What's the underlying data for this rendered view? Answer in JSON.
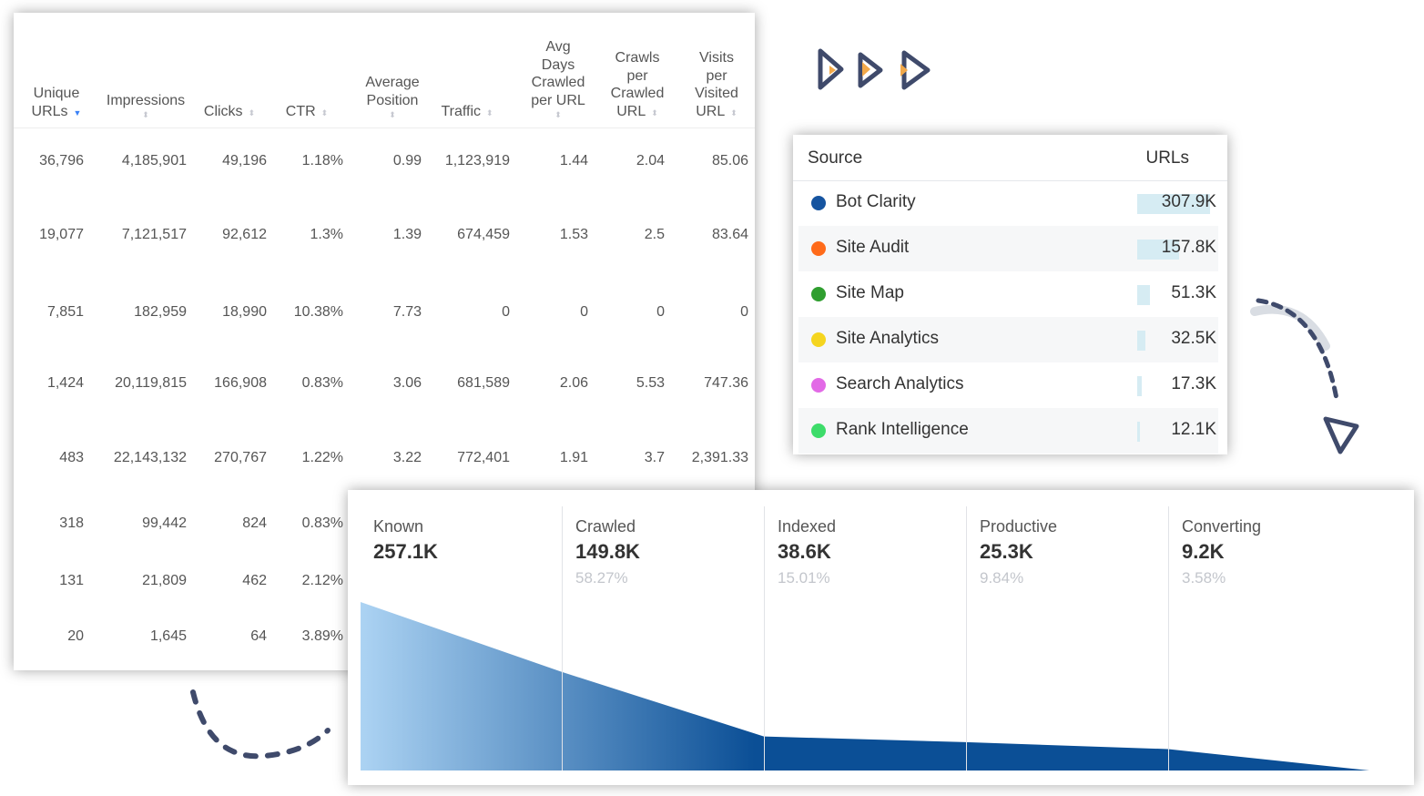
{
  "metrics_table": {
    "columns": [
      {
        "label": "Unique\nURLs",
        "sort": "desc"
      },
      {
        "label": "Impressions",
        "sort": "none"
      },
      {
        "label": "Clicks",
        "sort": "none"
      },
      {
        "label": "CTR",
        "sort": "none"
      },
      {
        "label": "Average\nPosition",
        "sort": "none"
      },
      {
        "label": "Traffic",
        "sort": "none"
      },
      {
        "label": "Avg\nDays\nCrawled\nper URL",
        "sort": "none"
      },
      {
        "label": "Crawls\nper\nCrawled\nURL",
        "sort": "none"
      },
      {
        "label": "Visits\nper\nVisited\nURL",
        "sort": "none"
      }
    ],
    "rows": [
      [
        "36,796",
        "4,185,901",
        "49,196",
        "1.18%",
        "0.99",
        "1,123,919",
        "1.44",
        "2.04",
        "85.06"
      ],
      [
        "19,077",
        "7,121,517",
        "92,612",
        "1.3%",
        "1.39",
        "674,459",
        "1.53",
        "2.5",
        "83.64"
      ],
      [
        "7,851",
        "182,959",
        "18,990",
        "10.38%",
        "7.73",
        "0",
        "0",
        "0",
        "0"
      ],
      [
        "1,424",
        "20,119,815",
        "166,908",
        "0.83%",
        "3.06",
        "681,589",
        "2.06",
        "5.53",
        "747.36"
      ],
      [
        "483",
        "22,143,132",
        "270,767",
        "1.22%",
        "3.22",
        "772,401",
        "1.91",
        "3.7",
        "2,391.33"
      ],
      [
        "318",
        "99,442",
        "824",
        "0.83%"
      ],
      [
        "131",
        "21,809",
        "462",
        "2.12%"
      ],
      [
        "20",
        "1,645",
        "64",
        "3.89%"
      ]
    ]
  },
  "source_table": {
    "headers": [
      "Source",
      "URLs"
    ],
    "rows": [
      {
        "name": "Bot Clarity",
        "value": "307.9K",
        "color": "#1554a0",
        "share": 1.0
      },
      {
        "name": "Site Audit",
        "value": "157.8K",
        "color": "#ff6b1a",
        "share": 0.58
      },
      {
        "name": "Site Map",
        "value": "51.3K",
        "color": "#2f9e2f",
        "share": 0.18
      },
      {
        "name": "Site Analytics",
        "value": "32.5K",
        "color": "#f5d51f",
        "share": 0.11
      },
      {
        "name": "Search Analytics",
        "value": "17.3K",
        "color": "#e26ae6",
        "share": 0.06
      },
      {
        "name": "Rank Intelligence",
        "value": "12.1K",
        "color": "#3ddc6a",
        "share": 0.04
      }
    ]
  },
  "funnel": {
    "stages": [
      {
        "label": "Known",
        "value": "257.1K",
        "percent": ""
      },
      {
        "label": "Crawled",
        "value": "149.8K",
        "percent": "58.27%"
      },
      {
        "label": "Indexed",
        "value": "38.6K",
        "percent": "15.01%"
      },
      {
        "label": "Productive",
        "value": "25.3K",
        "percent": "9.84%"
      },
      {
        "label": "Converting",
        "value": "9.2K",
        "percent": "3.58%"
      }
    ],
    "relative_heights": [
      1.0,
      0.585,
      0.202,
      0.168,
      0.127,
      0.0
    ]
  },
  "colors": {
    "arrow_stroke": "#3f4a6b",
    "arrow_accent": "#f2a94a",
    "funnel_light": "#acd3f3",
    "funnel_dark": "#0b4f96"
  }
}
